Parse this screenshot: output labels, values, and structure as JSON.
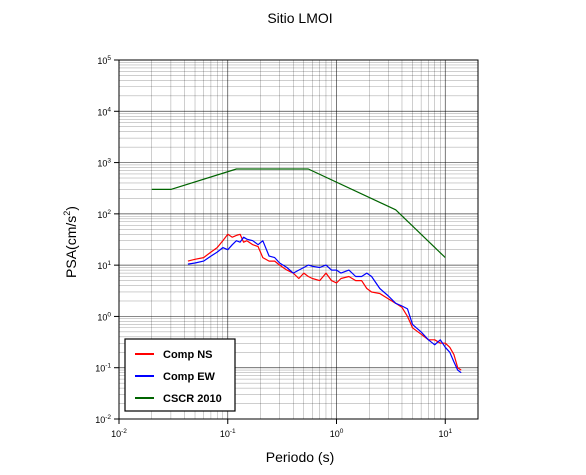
{
  "chart_data": {
    "type": "line",
    "title": "Sitio LMOI",
    "xlabel": "Periodo (s)",
    "ylabel": "PSA(cm/s²)",
    "ylabel_base": "PSA(cm/s",
    "ylabel_sup": "2",
    "ylabel_tail": ")",
    "x_scale": "log",
    "y_scale": "log",
    "xlim": [
      0.01,
      20
    ],
    "ylim": [
      0.01,
      100000
    ],
    "grid": true,
    "legend_position": "bottom-left",
    "x_ticks": [
      {
        "base": "10",
        "exp": "-2",
        "value": 0.01
      },
      {
        "base": "10",
        "exp": "-1",
        "value": 0.1
      },
      {
        "base": "10",
        "exp": "0",
        "value": 1
      },
      {
        "base": "10",
        "exp": "1",
        "value": 10
      }
    ],
    "y_ticks": [
      {
        "base": "10",
        "exp": "-2",
        "value": 0.01
      },
      {
        "base": "10",
        "exp": "-1",
        "value": 0.1
      },
      {
        "base": "10",
        "exp": "0",
        "value": 1
      },
      {
        "base": "10",
        "exp": "1",
        "value": 10
      },
      {
        "base": "10",
        "exp": "2",
        "value": 100
      },
      {
        "base": "10",
        "exp": "3",
        "value": 1000
      },
      {
        "base": "10",
        "exp": "4",
        "value": 10000
      },
      {
        "base": "10",
        "exp": "5",
        "value": 100000
      }
    ],
    "series": [
      {
        "name": "Comp NS",
        "color": "#ff0000",
        "x": [
          0.043,
          0.05,
          0.06,
          0.07,
          0.08,
          0.09,
          0.1,
          0.11,
          0.12,
          0.13,
          0.14,
          0.15,
          0.17,
          0.19,
          0.21,
          0.24,
          0.27,
          0.3,
          0.35,
          0.4,
          0.45,
          0.5,
          0.55,
          0.6,
          0.7,
          0.8,
          0.9,
          1.0,
          1.1,
          1.3,
          1.5,
          1.7,
          1.9,
          2.1,
          2.5,
          3.0,
          3.5,
          4.0,
          4.5,
          5.0,
          6.0,
          7.0,
          8.0,
          9.0,
          10.0,
          11.0,
          12.0,
          13.0,
          14.0
        ],
        "y": [
          12,
          13,
          14,
          18,
          22,
          30,
          40,
          35,
          38,
          40,
          28,
          30,
          25,
          23,
          14,
          12,
          12,
          10,
          8,
          7,
          5.5,
          7,
          6,
          5.5,
          5,
          7,
          5,
          4.5,
          5.5,
          6,
          5,
          5,
          3.5,
          3,
          2.8,
          2.2,
          1.8,
          1.5,
          1.0,
          0.6,
          0.45,
          0.35,
          0.35,
          0.3,
          0.3,
          0.25,
          0.18,
          0.1,
          0.09
        ]
      },
      {
        "name": "Comp EW",
        "color": "#0000ff",
        "x": [
          0.043,
          0.05,
          0.06,
          0.07,
          0.08,
          0.09,
          0.1,
          0.11,
          0.12,
          0.13,
          0.14,
          0.15,
          0.17,
          0.19,
          0.21,
          0.24,
          0.27,
          0.3,
          0.35,
          0.4,
          0.45,
          0.5,
          0.55,
          0.6,
          0.7,
          0.8,
          0.9,
          1.0,
          1.1,
          1.3,
          1.5,
          1.7,
          1.9,
          2.1,
          2.5,
          3.0,
          3.5,
          4.0,
          4.5,
          5.0,
          6.0,
          7.0,
          8.0,
          9.0,
          10.0,
          11.0,
          12.0,
          13.0,
          14.0
        ],
        "y": [
          10.5,
          11,
          12,
          15,
          18,
          22,
          20,
          25,
          30,
          28,
          35,
          32,
          30,
          25,
          30,
          15,
          14,
          11,
          9,
          7,
          8,
          9,
          10,
          9.5,
          9,
          10,
          8,
          8,
          7,
          8,
          6,
          6,
          7,
          6,
          3.5,
          2.5,
          1.8,
          1.6,
          1.4,
          0.7,
          0.5,
          0.35,
          0.28,
          0.35,
          0.25,
          0.2,
          0.13,
          0.09,
          0.08
        ]
      },
      {
        "name": "CSCR 2010",
        "color": "#006400",
        "x": [
          0.02,
          0.03,
          0.12,
          0.55,
          3.5,
          10.0
        ],
        "y": [
          300,
          300,
          750,
          750,
          120,
          14
        ]
      }
    ]
  },
  "colors": {
    "frame": "#000000",
    "grid": "#000000"
  }
}
